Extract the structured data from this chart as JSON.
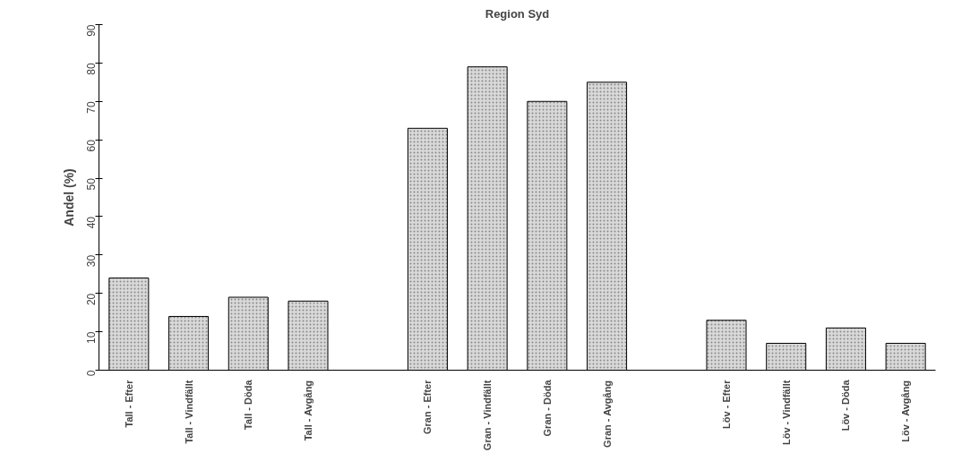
{
  "chart_data": {
    "type": "bar",
    "title": "Region Syd",
    "ylabel": "Andel (%)",
    "categories": [
      "Tall - Efter",
      "Tall - Vindfällt",
      "Tall - Döda",
      "Tall - Avgång",
      null,
      "Gran - Efter",
      "Gran - Vindfällt",
      "Gran - Döda",
      "Gran - Avgång",
      null,
      "Löv - Efter",
      "Löv - Vindfällt",
      "Löv - Döda",
      "Löv - Avgång"
    ],
    "values": [
      24,
      14,
      19,
      18,
      null,
      63,
      79,
      70,
      75,
      null,
      13,
      7,
      11,
      7
    ],
    "color": "#d9d9d9",
    "ylim": [
      0,
      90
    ],
    "yticks": [
      0,
      10,
      20,
      30,
      40,
      50,
      60,
      70,
      80,
      90
    ],
    "grid": false
  }
}
